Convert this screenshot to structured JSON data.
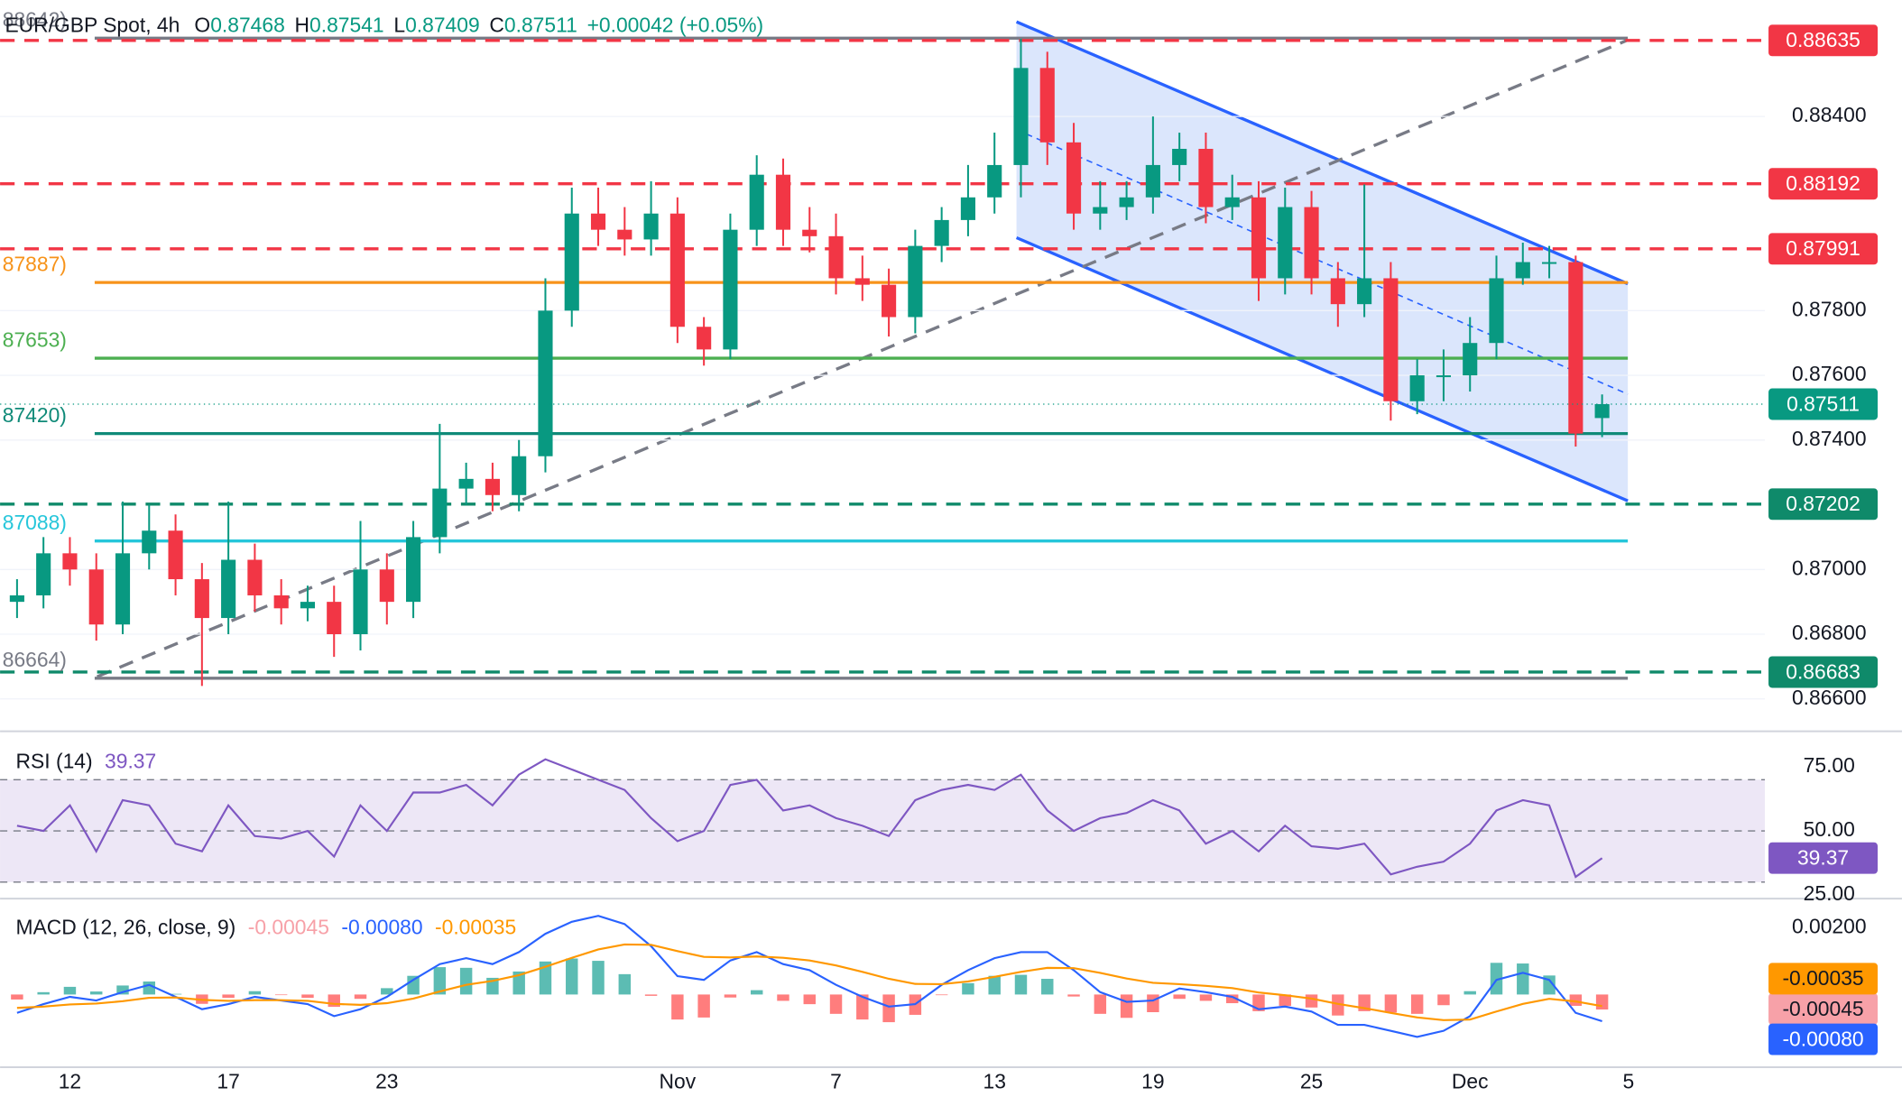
{
  "chart_data": [
    {
      "type": "candlestick",
      "title": "EUR/GBP Spot, 4h",
      "ohlc_letters": [
        "O",
        "H",
        "L",
        "C"
      ],
      "change": "+0.00042 (+0.05%)",
      "categories": [
        null,
        null,
        "12",
        null,
        null,
        null,
        null,
        null,
        "17",
        null,
        null,
        null,
        null,
        null,
        "23",
        null,
        null,
        null,
        null,
        null,
        null,
        null,
        null,
        null,
        null,
        "Nov",
        null,
        null,
        null,
        null,
        null,
        "7",
        null,
        null,
        null,
        null,
        null,
        "13",
        null,
        null,
        null,
        null,
        null,
        "19",
        null,
        null,
        null,
        null,
        null,
        "25",
        null,
        null,
        null,
        null,
        null,
        "Dec",
        null,
        null,
        null,
        null,
        null,
        "5"
      ],
      "open": [
        0.869,
        0.8692,
        0.8705,
        0.87,
        0.8683,
        0.8705,
        0.8712,
        0.8697,
        0.8685,
        0.8703,
        0.8692,
        0.8688,
        0.869,
        0.868,
        0.87,
        0.869,
        0.871,
        0.8725,
        0.8728,
        0.8723,
        0.8735,
        0.878,
        0.881,
        0.8805,
        0.8802,
        0.881,
        0.8775,
        0.8768,
        0.8805,
        0.8822,
        0.8805,
        0.8803,
        0.879,
        0.8788,
        0.8778,
        0.88,
        0.8808,
        0.8815,
        0.8825,
        0.8855,
        0.8832,
        0.881,
        0.8812,
        0.8815,
        0.8825,
        0.883,
        0.8812,
        0.8815,
        0.879,
        0.8812,
        0.879,
        0.8782,
        0.879,
        0.8752,
        0.876,
        0.876,
        0.877,
        0.879,
        0.8795,
        0.8795,
        0.87468,
        null
      ],
      "high": [
        0.8697,
        0.871,
        0.871,
        0.8705,
        0.8721,
        0.872,
        0.8717,
        0.8702,
        0.8721,
        0.8708,
        0.8697,
        0.8695,
        0.8695,
        0.8715,
        0.8705,
        0.8715,
        0.8745,
        0.8733,
        0.8733,
        0.874,
        0.879,
        0.8818,
        0.8818,
        0.8812,
        0.882,
        0.8815,
        0.8778,
        0.881,
        0.8828,
        0.8827,
        0.8812,
        0.881,
        0.8797,
        0.8793,
        0.8805,
        0.8812,
        0.8825,
        0.8835,
        0.8864,
        0.886,
        0.8838,
        0.882,
        0.882,
        0.884,
        0.8835,
        0.8835,
        0.8822,
        0.882,
        0.8818,
        0.8817,
        0.8795,
        0.8819,
        0.8795,
        0.8765,
        0.8768,
        0.8778,
        0.8797,
        0.8801,
        0.88,
        0.8797,
        0.87541,
        null
      ],
      "low": [
        0.8685,
        0.8688,
        0.8695,
        0.8678,
        0.868,
        0.87,
        0.8692,
        0.8664,
        0.868,
        0.8687,
        0.8683,
        0.8684,
        0.8673,
        0.8675,
        0.8683,
        0.8685,
        0.8705,
        0.872,
        0.8718,
        0.8718,
        0.873,
        0.8775,
        0.88,
        0.8797,
        0.8797,
        0.877,
        0.8763,
        0.8765,
        0.88,
        0.88,
        0.8798,
        0.8785,
        0.8783,
        0.8772,
        0.8773,
        0.8795,
        0.8803,
        0.881,
        0.8815,
        0.8825,
        0.8805,
        0.8805,
        0.8808,
        0.881,
        0.882,
        0.8807,
        0.8808,
        0.8783,
        0.8785,
        0.8785,
        0.8775,
        0.8778,
        0.8746,
        0.8748,
        0.8752,
        0.8755,
        0.8765,
        0.8788,
        0.879,
        0.8738,
        0.87409,
        null
      ],
      "close": [
        0.8692,
        0.8705,
        0.87,
        0.8683,
        0.8705,
        0.8712,
        0.8697,
        0.8685,
        0.8703,
        0.8692,
        0.8688,
        0.869,
        0.868,
        0.87,
        0.869,
        0.871,
        0.8725,
        0.8728,
        0.8723,
        0.8735,
        0.878,
        0.881,
        0.8805,
        0.8802,
        0.881,
        0.8775,
        0.8768,
        0.8805,
        0.8822,
        0.8805,
        0.8803,
        0.879,
        0.8788,
        0.8778,
        0.88,
        0.8808,
        0.8815,
        0.8825,
        0.8855,
        0.8832,
        0.881,
        0.8812,
        0.8815,
        0.8825,
        0.883,
        0.8812,
        0.8815,
        0.879,
        0.8812,
        0.879,
        0.8782,
        0.879,
        0.8752,
        0.876,
        0.876,
        0.877,
        0.879,
        0.8795,
        0.8795,
        0.8742,
        0.87511,
        null
      ],
      "colors": {
        "up": "#089981",
        "down": "#f23645"
      },
      "last_price_color": "#089981",
      "ylim": [
        0.865,
        0.8876
      ],
      "yticks": [
        {
          "value": 0.866,
          "label": "0.86600"
        },
        {
          "value": 0.868,
          "label": "0.86800"
        },
        {
          "value": 0.87,
          "label": "0.87000"
        },
        {
          "value": 0.874,
          "label": "0.87400"
        },
        {
          "value": 0.876,
          "label": "0.87600"
        },
        {
          "value": 0.878,
          "label": "0.87800"
        },
        {
          "value": 0.884,
          "label": "0.88400"
        }
      ],
      "grid": true,
      "levels": [
        {
          "value": 0.88642,
          "label": "88642)",
          "color": "#787b86",
          "style": "solid"
        },
        {
          "value": 0.88635,
          "color": "#f23645",
          "style": "dashed",
          "box": true
        },
        {
          "value": 0.88192,
          "color": "#f23645",
          "style": "dashed",
          "box": true
        },
        {
          "value": 0.87991,
          "color": "#f23645",
          "style": "dashed",
          "box": true
        },
        {
          "value": 0.87887,
          "label": "87887)",
          "color": "#f7931a",
          "style": "solid"
        },
        {
          "value": 0.87653,
          "label": "87653)",
          "color": "#4caf50",
          "style": "solid"
        },
        {
          "value": 0.8742,
          "label": "87420)",
          "color": "#0f8a78",
          "style": "solid"
        },
        {
          "value": 0.87202,
          "color": "#0f8a6a",
          "style": "dashed",
          "box": true
        },
        {
          "value": 0.87088,
          "label": "87088)",
          "color": "#26c6da",
          "style": "solid"
        },
        {
          "value": 0.86683,
          "color": "#0f8a6a",
          "style": "dashed",
          "box": true
        },
        {
          "value": 0.86664,
          "label": "86664)",
          "color": "#787b86",
          "style": "solid"
        }
      ]
    },
    {
      "type": "line",
      "title": "RSI (14)",
      "series": [
        {
          "color": "#7e57c2",
          "values": [
            52,
            50,
            60,
            42,
            62,
            60,
            45,
            42,
            60,
            48,
            47,
            50,
            40,
            60,
            50,
            65,
            65,
            68,
            60,
            72,
            78,
            74,
            70,
            66,
            55,
            46,
            50,
            68,
            70,
            58,
            60,
            55,
            52,
            48,
            62,
            66,
            68,
            66,
            72,
            58,
            50,
            55,
            57,
            62,
            58,
            45,
            50,
            42,
            52,
            44,
            43,
            45,
            33,
            36,
            38,
            45,
            58,
            62,
            60,
            32,
            39.37,
            null
          ]
        }
      ],
      "ylim": [
        24,
        88
      ],
      "yticks": [
        {
          "value": 75,
          "label": "75.00"
        },
        {
          "value": 50,
          "label": "50.00"
        },
        {
          "value": 25,
          "label": "25.00"
        }
      ],
      "levels": [
        30,
        50,
        70
      ],
      "band_color": "#ede7f6"
    },
    {
      "type": "macd",
      "title": "MACD (12, 26, close, 9)",
      "series": [
        {
          "type": "bar",
          "color": "#f7a1a8",
          "colors": {
            "up": "#26a69a",
            "down": "#ff5252"
          },
          "values": [
            -0.00015,
            7e-05,
            0.00023,
            9e-05,
            0.00027,
            0.00039,
            2e-05,
            -0.00028,
            -0.0001,
            0.0001,
            -1e-05,
            -0.0001,
            -0.00037,
            -0.00013,
            0.00019,
            0.00056,
            0.00082,
            0.0008,
            0.0005,
            0.00069,
            0.00099,
            0.00108,
            0.00101,
            0.00061,
            -4e-05,
            -0.00075,
            -0.00069,
            -9e-05,
            0.00013,
            -0.00019,
            -0.00029,
            -0.00058,
            -0.00075,
            -0.00083,
            -0.00061,
            -2e-05,
            0.00034,
            0.00056,
            0.00059,
            0.00047,
            -6e-05,
            -0.00058,
            -0.0007,
            -0.00053,
            -0.00013,
            -0.00019,
            -0.00026,
            -0.0005,
            -0.00034,
            -0.00039,
            -0.00063,
            -0.0005,
            -0.00054,
            -0.00058,
            -0.00032,
            0.0001,
            0.00095,
            0.00093,
            0.00057,
            -0.00034,
            -0.00045,
            null
          ]
        },
        {
          "type": "line",
          "color": "#2962ff",
          "values": [
            -0.00055,
            -0.00029,
            -7e-05,
            -0.00018,
            7e-05,
            0.00029,
            -7e-05,
            -0.00044,
            -0.00029,
            -7e-05,
            -0.00018,
            -0.00029,
            -0.00065,
            -0.00044,
            -7e-05,
            0.00044,
            0.00091,
            0.00109,
            0.00091,
            0.00127,
            0.00182,
            0.00218,
            0.00236,
            0.00211,
            0.00145,
            0.00055,
            0.00044,
            0.00102,
            0.00127,
            0.00091,
            0.00073,
            0.00029,
            -7e-05,
            -0.00036,
            -0.00029,
            0.00029,
            0.00073,
            0.00109,
            0.00127,
            0.00127,
            0.00073,
            7e-05,
            -0.00022,
            -0.00018,
            0.00018,
            7e-05,
            -7e-05,
            -0.00044,
            -0.00036,
            -0.00051,
            -0.00091,
            -0.00091,
            -0.00109,
            -0.00127,
            -0.00109,
            -0.00065,
            0.00044,
            0.00065,
            0.00044,
            -0.00055,
            -0.0008,
            null
          ],
          "value_labels": [
            null,
            null,
            null,
            null,
            null,
            null,
            null,
            null,
            null,
            null,
            null,
            null,
            null,
            null,
            null,
            null,
            null,
            null,
            null,
            null,
            null,
            null,
            null,
            null,
            null,
            null,
            null,
            null,
            null,
            null,
            null,
            null,
            null,
            null,
            null,
            null,
            null,
            null,
            null,
            null,
            null,
            null,
            null,
            null,
            null,
            null,
            null,
            null,
            null,
            null,
            null,
            null,
            null,
            null,
            null,
            null,
            null,
            null,
            null,
            null,
            "-0.00080",
            null
          ]
        },
        {
          "type": "line",
          "color": "#ff9800",
          "values": [
            -0.0004,
            -0.00036,
            -0.0003,
            -0.00027,
            -0.0002,
            -0.0001,
            -9e-05,
            -0.00016,
            -0.00019,
            -0.00017,
            -0.00017,
            -0.00019,
            -0.00028,
            -0.00031,
            -0.00026,
            -0.00012,
            9e-05,
            0.00029,
            0.00041,
            0.00058,
            0.00083,
            0.0011,
            0.00135,
            0.0015,
            0.00149,
            0.0013,
            0.00113,
            0.00111,
            0.00114,
            0.0011,
            0.00102,
            0.00087,
            0.00068,
            0.00047,
            0.00032,
            0.00031,
            0.00039,
            0.00053,
            0.00068,
            0.0008,
            0.00079,
            0.00065,
            0.00048,
            0.00035,
            0.00031,
            0.00026,
            0.00019,
            6e-05,
            -2e-05,
            -0.00012,
            -0.00028,
            -0.00041,
            -0.00055,
            -0.00069,
            -0.00077,
            -0.00075,
            -0.00051,
            -0.00028,
            -0.00013,
            -0.00021,
            -0.00035,
            null
          ]
        }
      ],
      "ylim": [
        -0.00218,
        0.00273
      ],
      "yticks": [
        {
          "value": 0.002,
          "label": "0.00200"
        }
      ]
    }
  ]
}
